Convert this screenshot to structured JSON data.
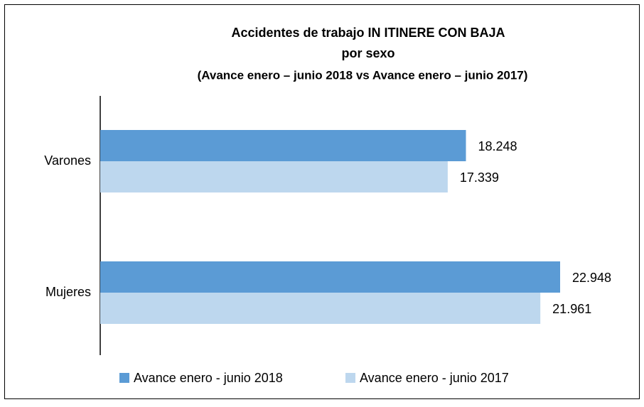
{
  "chart_data": {
    "type": "barh",
    "title": [
      "Accidentes de trabajo IN ITINERE CON BAJA",
      "por sexo"
    ],
    "subtitle": "(Avance enero – junio 2018 vs Avance enero – junio 2017)",
    "categories": [
      "Varones",
      "Mujeres"
    ],
    "series": [
      {
        "name": "Avance enero - junio 2018",
        "color": "#5b9bd5",
        "values": [
          18248,
          22948
        ],
        "value_labels": [
          "18.248",
          "22.948"
        ]
      },
      {
        "name": "Avance enero - junio 2017",
        "color": "#bdd7ee",
        "values": [
          17339,
          21961
        ],
        "value_labels": [
          "17.339",
          "21.961"
        ]
      }
    ],
    "legend": "bottom"
  }
}
